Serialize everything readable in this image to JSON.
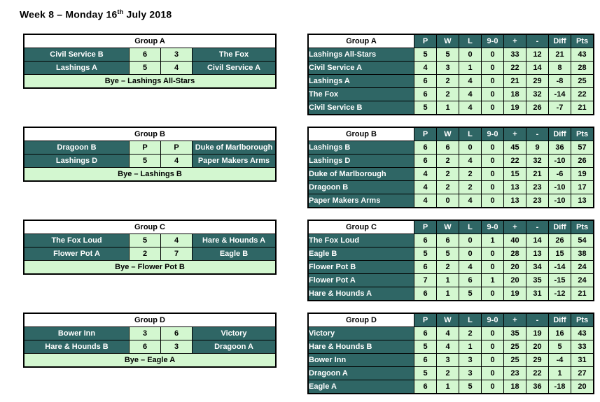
{
  "title": {
    "before": "Week 8 – Monday 16",
    "sup": "th",
    "after": " July 2018"
  },
  "colors": {
    "teal": "#2F6665",
    "green": "#D3F7D0",
    "header_bg": "#FFFFFF",
    "border": "#000000"
  },
  "standings_headers": [
    "P",
    "W",
    "L",
    "9-0",
    "+",
    "-",
    "Diff",
    "Pts"
  ],
  "groups": [
    {
      "name": "Group A",
      "fixtures": [
        {
          "home": "Civil Service B",
          "home_score": "6",
          "away_score": "3",
          "away": "The Fox"
        },
        {
          "home": "Lashings A",
          "home_score": "5",
          "away_score": "4",
          "away": "Civil Service A"
        }
      ],
      "bye": "Bye – Lashings All-Stars",
      "standings": [
        {
          "team": "Lashings All-Stars",
          "values": [
            "5",
            "5",
            "0",
            "0",
            "33",
            "12",
            "21",
            "43"
          ]
        },
        {
          "team": "Civil Service A",
          "values": [
            "4",
            "3",
            "1",
            "0",
            "22",
            "14",
            "8",
            "28"
          ]
        },
        {
          "team": "Lashings A",
          "values": [
            "6",
            "2",
            "4",
            "0",
            "21",
            "29",
            "-8",
            "25"
          ]
        },
        {
          "team": "The Fox",
          "values": [
            "6",
            "2",
            "4",
            "0",
            "18",
            "32",
            "-14",
            "22"
          ]
        },
        {
          "team": "Civil Service B",
          "values": [
            "5",
            "1",
            "4",
            "0",
            "19",
            "26",
            "-7",
            "21"
          ]
        }
      ]
    },
    {
      "name": "Group B",
      "fixtures": [
        {
          "home": "Dragoon B",
          "home_score": "P",
          "away_score": "P",
          "away": "Duke of Marlborough"
        },
        {
          "home": "Lashings D",
          "home_score": "5",
          "away_score": "4",
          "away": "Paper Makers Arms"
        }
      ],
      "bye": "Bye – Lashings B",
      "standings": [
        {
          "team": "Lashings B",
          "values": [
            "6",
            "6",
            "0",
            "0",
            "45",
            "9",
            "36",
            "57"
          ]
        },
        {
          "team": "Lashings D",
          "values": [
            "6",
            "2",
            "4",
            "0",
            "22",
            "32",
            "-10",
            "26"
          ]
        },
        {
          "team": "Duke of Marlborough",
          "values": [
            "4",
            "2",
            "2",
            "0",
            "15",
            "21",
            "-6",
            "19"
          ]
        },
        {
          "team": "Dragoon B",
          "values": [
            "4",
            "2",
            "2",
            "0",
            "13",
            "23",
            "-10",
            "17"
          ]
        },
        {
          "team": "Paper Makers Arms",
          "values": [
            "4",
            "0",
            "4",
            "0",
            "13",
            "23",
            "-10",
            "13"
          ]
        }
      ]
    },
    {
      "name": "Group C",
      "fixtures": [
        {
          "home": "The Fox Loud",
          "home_score": "5",
          "away_score": "4",
          "away": "Hare & Hounds A"
        },
        {
          "home": "Flower Pot A",
          "home_score": "2",
          "away_score": "7",
          "away": "Eagle B"
        }
      ],
      "bye": "Bye – Flower Pot B",
      "standings": [
        {
          "team": "The Fox Loud",
          "values": [
            "6",
            "6",
            "0",
            "1",
            "40",
            "14",
            "26",
            "54"
          ]
        },
        {
          "team": "Eagle B",
          "values": [
            "5",
            "5",
            "0",
            "0",
            "28",
            "13",
            "15",
            "38"
          ]
        },
        {
          "team": "Flower Pot B",
          "values": [
            "6",
            "2",
            "4",
            "0",
            "20",
            "34",
            "-14",
            "24"
          ]
        },
        {
          "team": "Flower Pot A",
          "values": [
            "7",
            "1",
            "6",
            "1",
            "20",
            "35",
            "-15",
            "24"
          ]
        },
        {
          "team": "Hare & Hounds A",
          "values": [
            "6",
            "1",
            "5",
            "0",
            "19",
            "31",
            "-12",
            "21"
          ]
        }
      ]
    },
    {
      "name": "Group D",
      "fixtures": [
        {
          "home": "Bower Inn",
          "home_score": "3",
          "away_score": "6",
          "away": "Victory"
        },
        {
          "home": "Hare & Hounds B",
          "home_score": "6",
          "away_score": "3",
          "away": "Dragoon A"
        }
      ],
      "bye": "Bye – Eagle A",
      "standings": [
        {
          "team": "Victory",
          "values": [
            "6",
            "4",
            "2",
            "0",
            "35",
            "19",
            "16",
            "43"
          ]
        },
        {
          "team": "Hare & Hounds B",
          "values": [
            "5",
            "4",
            "1",
            "0",
            "25",
            "20",
            "5",
            "33"
          ]
        },
        {
          "team": "Bower Inn",
          "values": [
            "6",
            "3",
            "3",
            "0",
            "25",
            "29",
            "-4",
            "31"
          ]
        },
        {
          "team": "Dragoon A",
          "values": [
            "5",
            "2",
            "3",
            "0",
            "23",
            "22",
            "1",
            "27"
          ]
        },
        {
          "team": "Eagle A",
          "values": [
            "6",
            "1",
            "5",
            "0",
            "18",
            "36",
            "-18",
            "20"
          ]
        }
      ]
    }
  ]
}
